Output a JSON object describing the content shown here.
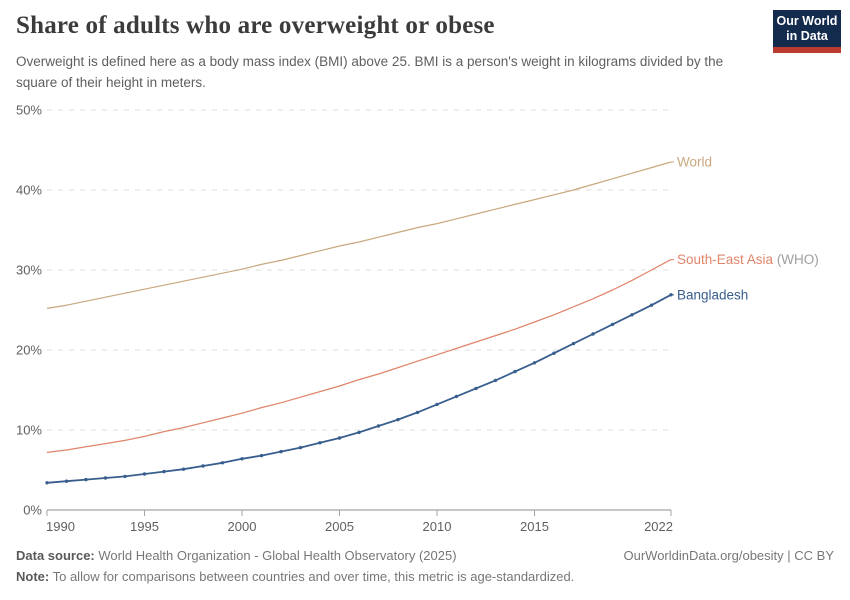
{
  "colors": {
    "logo_navy": "#132c4e",
    "logo_red": "#bc3b31",
    "series_world": "#c9a87e",
    "series_sea": "#e0846a",
    "series_bangladesh": "#385e8e",
    "suffix_gray": "#9e9e9e"
  },
  "header": {
    "logo": {
      "line1": "Our World",
      "line2": "in Data"
    }
  },
  "footer": {
    "datasource_label": "Data source:",
    "datasource": "World Health Organization - Global Health Observatory (2025)",
    "note_label": "Note:",
    "note": "To allow for comparisons between countries and over time, this metric is age-standardized.",
    "credit": "OurWorldinData.org/obesity | CC BY"
  },
  "chart_data": {
    "type": "line",
    "title": "Share of adults who are overweight or obese",
    "subtitle": "Overweight is defined here as a body mass index (BMI) above 25. BMI is a person's weight in kilograms divided by the square of their height in meters.",
    "xlabel": "",
    "ylabel": "",
    "xlim": [
      1990,
      2022
    ],
    "ylim": [
      0,
      50
    ],
    "grid": "horizontal-dashed",
    "legend_position": "end-of-line-labels",
    "xticks": [
      1990,
      1995,
      2000,
      2005,
      2010,
      2015,
      2022
    ],
    "yticks": [
      {
        "v": 0,
        "label": "0%"
      },
      {
        "v": 10,
        "label": "10%"
      },
      {
        "v": 20,
        "label": "20%"
      },
      {
        "v": 30,
        "label": "30%"
      },
      {
        "v": 40,
        "label": "40%"
      },
      {
        "v": 50,
        "label": "50%"
      }
    ],
    "x": [
      1990,
      1991,
      1992,
      1993,
      1994,
      1995,
      1996,
      1997,
      1998,
      1999,
      2000,
      2001,
      2002,
      2003,
      2004,
      2005,
      2006,
      2007,
      2008,
      2009,
      2010,
      2011,
      2012,
      2013,
      2014,
      2015,
      2016,
      2017,
      2018,
      2019,
      2020,
      2021,
      2022
    ],
    "series": [
      {
        "name": "World",
        "label": "World",
        "label_suffix": "",
        "color_key": "series_world",
        "markers": false,
        "values": [
          25.2,
          25.6,
          26.1,
          26.6,
          27.1,
          27.6,
          28.1,
          28.6,
          29.1,
          29.6,
          30.1,
          30.7,
          31.2,
          31.8,
          32.4,
          33.0,
          33.5,
          34.1,
          34.7,
          35.3,
          35.8,
          36.4,
          37.0,
          37.6,
          38.2,
          38.8,
          39.4,
          40.0,
          40.7,
          41.4,
          42.1,
          42.8,
          43.5
        ]
      },
      {
        "name": "South-East Asia (WHO)",
        "label": "South-East Asia",
        "label_suffix": " (WHO)",
        "color_key": "series_sea",
        "markers": false,
        "values": [
          7.2,
          7.5,
          7.9,
          8.3,
          8.7,
          9.2,
          9.8,
          10.3,
          10.9,
          11.5,
          12.1,
          12.8,
          13.4,
          14.1,
          14.8,
          15.5,
          16.3,
          17.0,
          17.8,
          18.6,
          19.4,
          20.2,
          21.0,
          21.8,
          22.6,
          23.5,
          24.4,
          25.4,
          26.4,
          27.5,
          28.7,
          30.0,
          31.3
        ]
      },
      {
        "name": "Bangladesh",
        "label": "Bangladesh",
        "label_suffix": "",
        "color_key": "series_bangladesh",
        "markers": true,
        "values": [
          3.4,
          3.6,
          3.8,
          4.0,
          4.2,
          4.5,
          4.8,
          5.1,
          5.5,
          5.9,
          6.4,
          6.8,
          7.3,
          7.8,
          8.4,
          9.0,
          9.7,
          10.5,
          11.3,
          12.2,
          13.2,
          14.2,
          15.2,
          16.2,
          17.3,
          18.4,
          19.6,
          20.8,
          22.0,
          23.2,
          24.4,
          25.6,
          26.9
        ]
      }
    ]
  }
}
